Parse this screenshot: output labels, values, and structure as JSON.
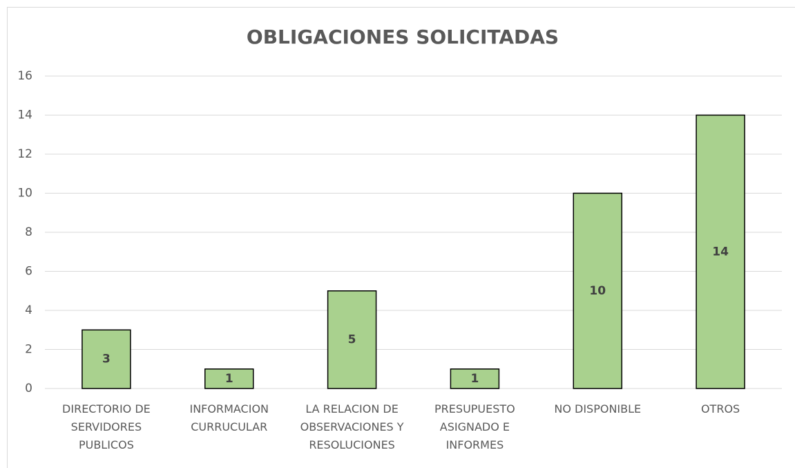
{
  "chart_data": {
    "type": "bar",
    "title": "OBLIGACIONES SOLICITADAS",
    "categories": [
      "DIRECTORIO DE SERVIDORES PUBLICOS",
      "INFORMACION CURRUCULAR",
      "LA RELACION DE OBSERVACIONES Y RESOLUCIONES",
      "PRESUPUESTO ASIGNADO E INFORMES",
      "NO DISPONIBLE",
      "OTROS"
    ],
    "values": [
      3,
      1,
      5,
      1,
      10,
      14
    ],
    "color": "#a9d18e",
    "ylim": [
      0,
      16
    ],
    "yticks": [
      0,
      2,
      4,
      6,
      8,
      10,
      12,
      14,
      16
    ],
    "grid": true
  }
}
